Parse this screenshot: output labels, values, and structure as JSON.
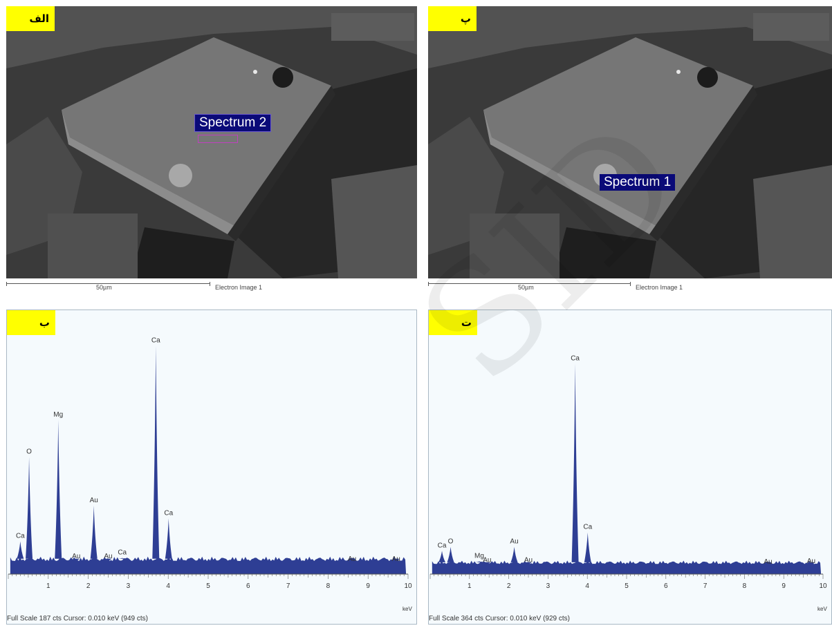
{
  "panels": {
    "alef": {
      "tag": "الف",
      "spectrum_label": "Spectrum 2",
      "scale_length": "50µm",
      "scale_caption": "Electron Image 1"
    },
    "pe": {
      "tag": "پ",
      "spectrum_label": "Spectrum 1",
      "scale_length": "50µm",
      "scale_caption": "Electron Image 1"
    },
    "be": {
      "tag": "ب",
      "footer": "Full Scale 187 cts  Cursor: 0.010 keV (949 cts)",
      "unit": "keV"
    },
    "te": {
      "tag": "ت",
      "footer": "Full Scale 364 cts  Cursor: 0.010 keV (929 cts)",
      "unit": "keV"
    }
  },
  "watermark": "SID",
  "colors": {
    "spectrum_fill": "#2e3e94",
    "tag_bg": "#ffff00",
    "sem_bg": "#3e3e3e",
    "label_bg": "#0a0a78"
  },
  "chart_data": [
    {
      "type": "area",
      "panel": "ب",
      "xlabel": "keV",
      "x_ticks": [
        "1",
        "2",
        "3",
        "4",
        "5",
        "6",
        "7",
        "8",
        "9",
        "10"
      ],
      "xlim": [
        0,
        10
      ],
      "ylim": [
        0,
        187
      ],
      "baseline_counts": 12,
      "peaks": [
        {
          "label": "Ca",
          "x": 0.3,
          "y": 22
        },
        {
          "label": "O",
          "x": 0.52,
          "y": 88
        },
        {
          "label": "Mg",
          "x": 1.25,
          "y": 117
        },
        {
          "label": "Au",
          "x": 1.7,
          "y": 6
        },
        {
          "label": "Au",
          "x": 2.14,
          "y": 50
        },
        {
          "label": "Au",
          "x": 2.5,
          "y": 6
        },
        {
          "label": "Ca",
          "x": 2.85,
          "y": 9
        },
        {
          "label": "Ca",
          "x": 3.69,
          "y": 175
        },
        {
          "label": "Ca",
          "x": 4.01,
          "y": 40
        },
        {
          "label": "Au",
          "x": 8.6,
          "y": 4
        },
        {
          "label": "Au",
          "x": 9.7,
          "y": 4
        }
      ]
    },
    {
      "type": "area",
      "panel": "ت",
      "xlabel": "keV",
      "x_ticks": [
        "1",
        "2",
        "3",
        "4",
        "5",
        "6",
        "7",
        "8",
        "9",
        "10"
      ],
      "xlim": [
        0,
        10
      ],
      "ylim": [
        0,
        364
      ],
      "baseline_counts": 18,
      "peaks": [
        {
          "label": "Ca",
          "x": 0.3,
          "y": 30
        },
        {
          "label": "O",
          "x": 0.52,
          "y": 36
        },
        {
          "label": "Mg",
          "x": 1.25,
          "y": 14
        },
        {
          "label": "Au",
          "x": 1.45,
          "y": 8
        },
        {
          "label": "Au",
          "x": 2.14,
          "y": 36
        },
        {
          "label": "Au",
          "x": 2.5,
          "y": 8
        },
        {
          "label": "Ca",
          "x": 3.69,
          "y": 315
        },
        {
          "label": "Ca",
          "x": 4.01,
          "y": 58
        },
        {
          "label": "Au",
          "x": 8.6,
          "y": 5
        },
        {
          "label": "Au",
          "x": 9.7,
          "y": 6
        }
      ]
    }
  ]
}
